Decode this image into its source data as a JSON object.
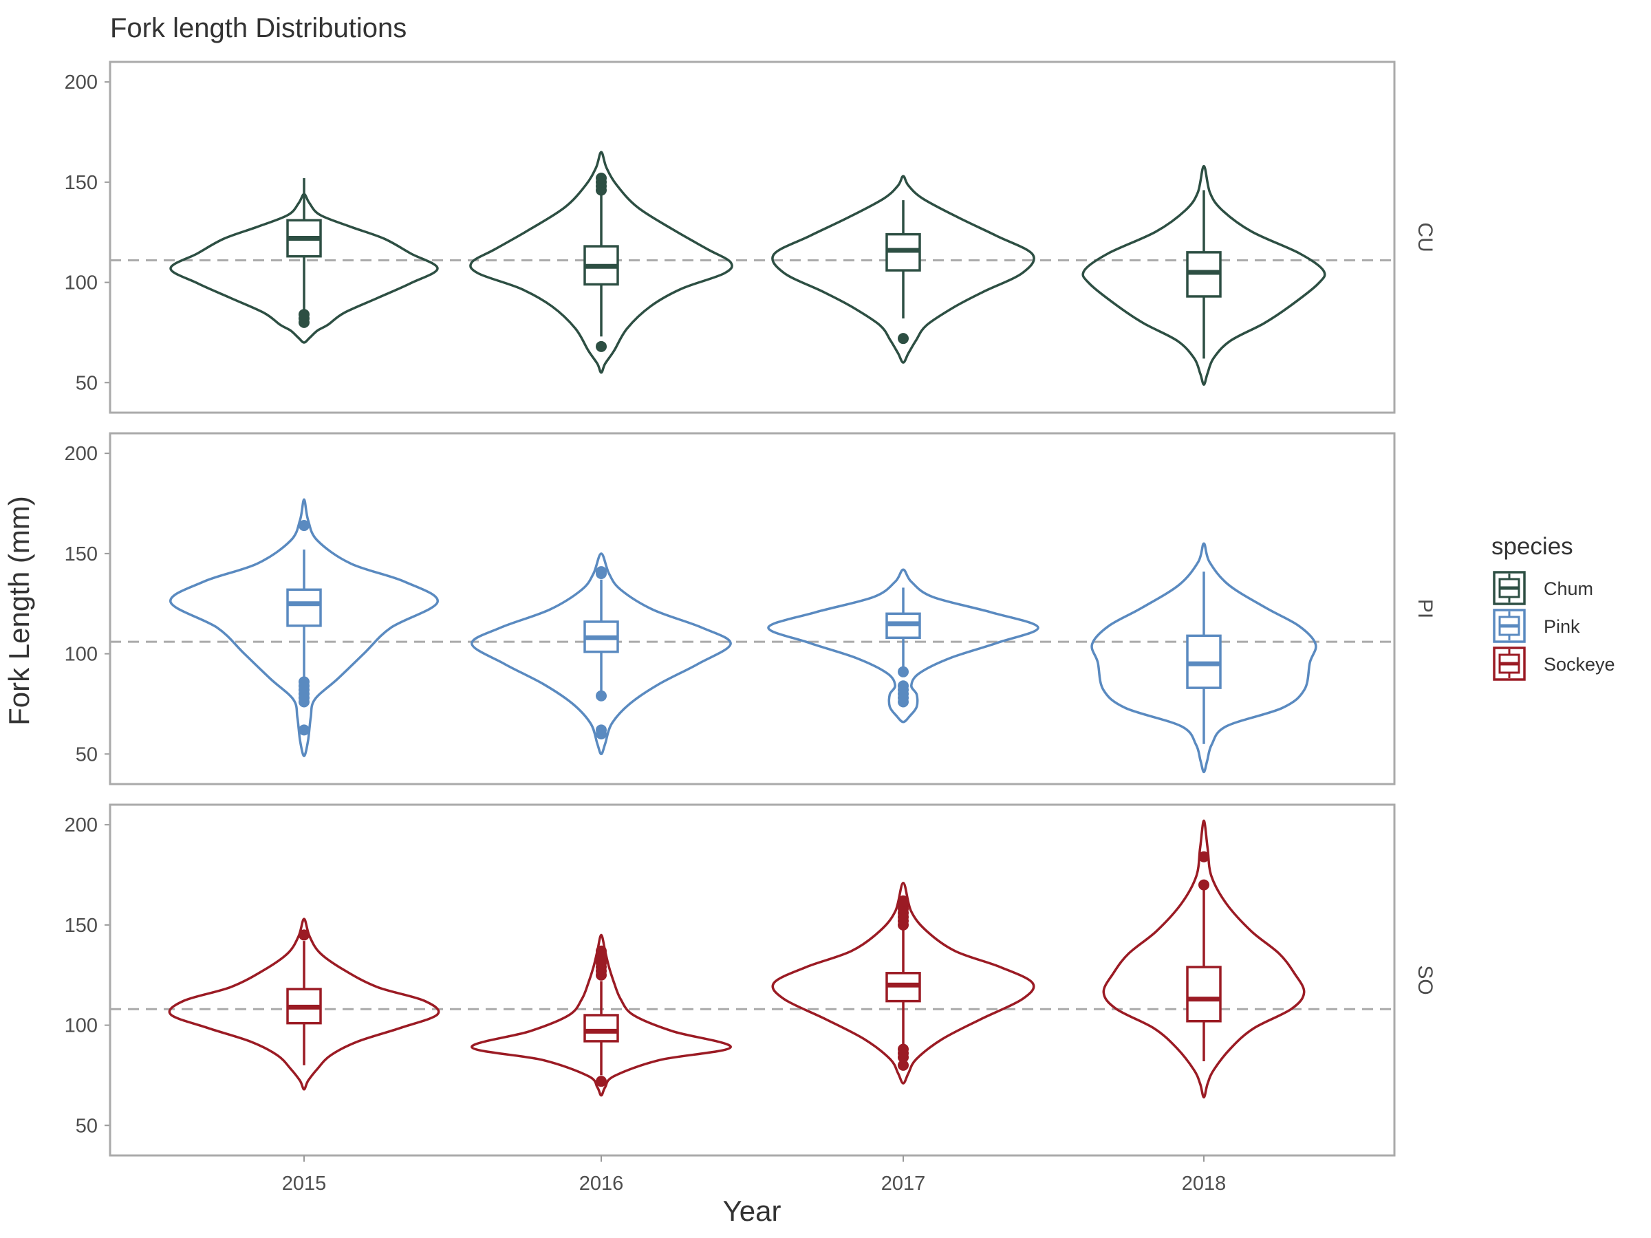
{
  "chart_data": {
    "type": "violin",
    "title": "Fork length Distributions",
    "xlabel": "Year",
    "ylabel": "Fork Length (mm)",
    "categories": [
      "2015",
      "2016",
      "2017",
      "2018"
    ],
    "ylim": [
      35,
      210
    ],
    "yticks": [
      50,
      100,
      150,
      200
    ],
    "grid": false,
    "legend": {
      "title": "species",
      "position": "right",
      "entries": [
        {
          "label": "Chum",
          "color": "#2d4f43"
        },
        {
          "label": "Pink",
          "color": "#5a8ac0"
        },
        {
          "label": "Sockeye",
          "color": "#9b1b24"
        }
      ]
    },
    "panels": [
      {
        "strip": "CU",
        "species": "Chum",
        "color": "#2d4f43",
        "reference_line": 111,
        "groups": [
          {
            "year": "2015",
            "violin_min": 70,
            "violin_max": 144,
            "box": {
              "whisker_low": 84,
              "q1": 113,
              "median": 122,
              "q3": 131,
              "whisker_high": 152
            },
            "outliers": [
              80,
              82,
              84
            ]
          },
          {
            "year": "2016",
            "violin_min": 55,
            "violin_max": 165,
            "box": {
              "whisker_low": 73,
              "q1": 99,
              "median": 108,
              "q3": 118,
              "whisker_high": 144
            },
            "outliers": [
              68,
              146,
              148,
              150,
              152
            ]
          },
          {
            "year": "2017",
            "violin_min": 60,
            "violin_max": 153,
            "box": {
              "whisker_low": 82,
              "q1": 106,
              "median": 116,
              "q3": 124,
              "whisker_high": 141
            },
            "outliers": [
              72
            ]
          },
          {
            "year": "2018",
            "violin_min": 49,
            "violin_max": 158,
            "box": {
              "whisker_low": 62,
              "q1": 93,
              "median": 105,
              "q3": 115,
              "whisker_high": 146
            },
            "outliers": []
          }
        ]
      },
      {
        "strip": "PI",
        "species": "Pink",
        "color": "#5a8ac0",
        "reference_line": 106,
        "groups": [
          {
            "year": "2015",
            "violin_min": 49,
            "violin_max": 177,
            "box": {
              "whisker_low": 88,
              "q1": 114,
              "median": 125,
              "q3": 132,
              "whisker_high": 152
            },
            "outliers": [
              62,
              76,
              78,
              80,
              82,
              84,
              86,
              164
            ]
          },
          {
            "year": "2016",
            "violin_min": 50,
            "violin_max": 150,
            "box": {
              "whisker_low": 81,
              "q1": 101,
              "median": 108,
              "q3": 116,
              "whisker_high": 137
            },
            "outliers": [
              60,
              62,
              79,
              140,
              141
            ]
          },
          {
            "year": "2017",
            "violin_min": 66,
            "violin_max": 142,
            "box": {
              "whisker_low": 93,
              "q1": 108,
              "median": 115,
              "q3": 120,
              "whisker_high": 133
            },
            "outliers": [
              76,
              78,
              80,
              82,
              84,
              91
            ]
          },
          {
            "year": "2018",
            "violin_min": 41,
            "violin_max": 155,
            "box": {
              "whisker_low": 55,
              "q1": 83,
              "median": 95,
              "q3": 109,
              "whisker_high": 141
            },
            "outliers": []
          }
        ]
      },
      {
        "strip": "SO",
        "species": "Sockeye",
        "color": "#9b1b24",
        "reference_line": 108,
        "groups": [
          {
            "year": "2015",
            "violin_min": 68,
            "violin_max": 153,
            "box": {
              "whisker_low": 80,
              "q1": 101,
              "median": 109,
              "q3": 118,
              "whisker_high": 142
            },
            "outliers": [
              145
            ]
          },
          {
            "year": "2016",
            "violin_min": 65,
            "violin_max": 145,
            "box": {
              "whisker_low": 75,
              "q1": 92,
              "median": 97,
              "q3": 105,
              "whisker_high": 122
            },
            "outliers": [
              72,
              125,
              127,
              129,
              131,
              133,
              135,
              137
            ]
          },
          {
            "year": "2017",
            "violin_min": 71,
            "violin_max": 171,
            "box": {
              "whisker_low": 90,
              "q1": 112,
              "median": 120,
              "q3": 126,
              "whisker_high": 148
            },
            "outliers": [
              80,
              84,
              86,
              88,
              150,
              152,
              154,
              156,
              158,
              160,
              162
            ]
          },
          {
            "year": "2018",
            "violin_min": 64,
            "violin_max": 202,
            "box": {
              "whisker_low": 82,
              "q1": 102,
              "median": 113,
              "q3": 129,
              "whisker_high": 168
            },
            "outliers": [
              170,
              184
            ]
          }
        ]
      }
    ]
  }
}
